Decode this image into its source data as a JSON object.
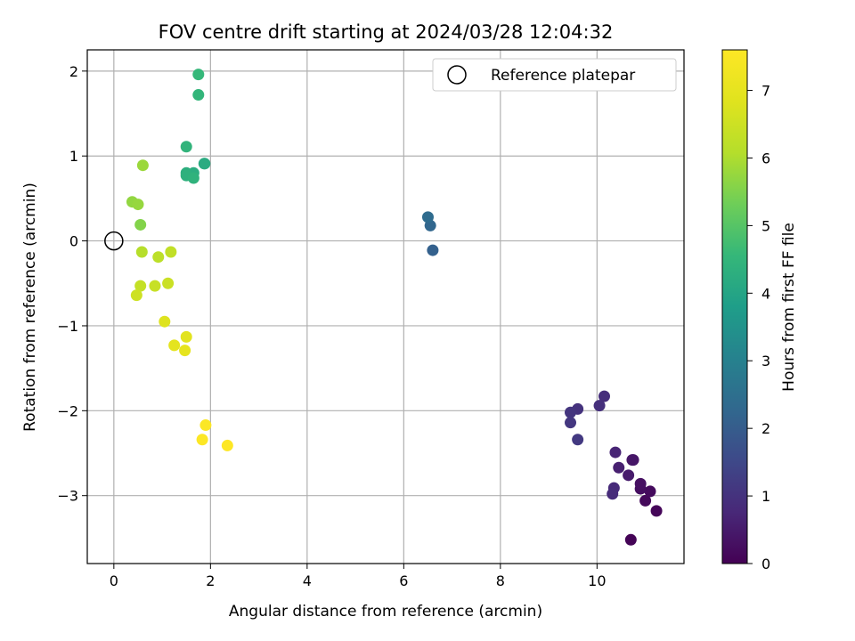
{
  "chart_data": {
    "type": "scatter",
    "title": "FOV centre drift starting at 2024/03/28 12:04:32",
    "xlabel": "Angular distance from reference (arcmin)",
    "ylabel": "Rotation from reference (arcmin)",
    "xlim": [
      -0.55,
      11.8
    ],
    "ylim": [
      -3.8,
      2.25
    ],
    "xticks": [
      0,
      2,
      4,
      6,
      8,
      10
    ],
    "yticks": [
      -3,
      -2,
      -1,
      0,
      1,
      2
    ],
    "xtick_labels": [
      "0",
      "2",
      "4",
      "6",
      "8",
      "10"
    ],
    "ytick_labels": [
      "−3",
      "−2",
      "−1",
      "0",
      "1",
      "2"
    ],
    "grid": true,
    "legend": {
      "position": "top-right",
      "entries": [
        "Reference platepar"
      ]
    },
    "reference_point": {
      "x": 0,
      "y": 0,
      "label": "Reference platepar"
    },
    "colorbar": {
      "label": "Hours from first FF file",
      "colormap": "viridis",
      "range": [
        0,
        7.6
      ],
      "ticks": [
        0,
        1,
        2,
        3,
        4,
        5,
        6,
        7
      ],
      "tick_labels": [
        "0",
        "1",
        "2",
        "3",
        "4",
        "5",
        "6",
        "7"
      ]
    },
    "points": [
      {
        "x": 10.7,
        "y": -3.52,
        "hours": 0.05
      },
      {
        "x": 11.23,
        "y": -3.18,
        "hours": 0.1
      },
      {
        "x": 11.0,
        "y": -3.06,
        "hours": 0.15
      },
      {
        "x": 11.1,
        "y": -2.95,
        "hours": 0.2
      },
      {
        "x": 10.9,
        "y": -2.92,
        "hours": 0.25
      },
      {
        "x": 10.9,
        "y": -2.86,
        "hours": 0.3
      },
      {
        "x": 10.75,
        "y": -2.58,
        "hours": 0.35
      },
      {
        "x": 10.73,
        "y": -2.58,
        "hours": 0.4
      },
      {
        "x": 10.65,
        "y": -2.76,
        "hours": 0.5
      },
      {
        "x": 10.45,
        "y": -2.67,
        "hours": 0.6
      },
      {
        "x": 10.38,
        "y": -2.49,
        "hours": 0.7
      },
      {
        "x": 10.35,
        "y": -2.91,
        "hours": 0.8
      },
      {
        "x": 10.32,
        "y": -2.98,
        "hours": 0.85
      },
      {
        "x": 10.15,
        "y": -1.83,
        "hours": 0.9
      },
      {
        "x": 10.05,
        "y": -1.94,
        "hours": 0.95
      },
      {
        "x": 9.6,
        "y": -1.98,
        "hours": 1.0
      },
      {
        "x": 9.45,
        "y": -2.02,
        "hours": 1.05
      },
      {
        "x": 9.45,
        "y": -2.14,
        "hours": 1.1
      },
      {
        "x": 9.6,
        "y": -2.34,
        "hours": 1.15
      },
      {
        "x": 6.6,
        "y": -0.11,
        "hours": 2.1
      },
      {
        "x": 6.55,
        "y": 0.18,
        "hours": 2.25
      },
      {
        "x": 6.5,
        "y": 0.28,
        "hours": 2.4
      },
      {
        "x": 1.87,
        "y": 0.91,
        "hours": 4.15
      },
      {
        "x": 1.88,
        "y": 0.91,
        "hours": 4.2
      },
      {
        "x": 1.65,
        "y": 0.8,
        "hours": 4.25
      },
      {
        "x": 1.5,
        "y": 0.8,
        "hours": 4.3
      },
      {
        "x": 1.5,
        "y": 0.77,
        "hours": 4.35
      },
      {
        "x": 1.65,
        "y": 0.74,
        "hours": 4.4
      },
      {
        "x": 1.5,
        "y": 1.11,
        "hours": 4.45
      },
      {
        "x": 1.75,
        "y": 1.72,
        "hours": 4.5
      },
      {
        "x": 1.75,
        "y": 1.96,
        "hours": 4.55
      },
      {
        "x": 0.55,
        "y": 0.19,
        "hours": 5.55
      },
      {
        "x": 0.38,
        "y": 0.46,
        "hours": 5.7
      },
      {
        "x": 0.5,
        "y": 0.43,
        "hours": 5.75
      },
      {
        "x": 0.6,
        "y": 0.89,
        "hours": 5.8
      },
      {
        "x": 0.58,
        "y": -0.13,
        "hours": 6.1
      },
      {
        "x": 0.92,
        "y": -0.19,
        "hours": 6.2
      },
      {
        "x": 1.18,
        "y": -0.13,
        "hours": 6.3
      },
      {
        "x": 0.55,
        "y": -0.53,
        "hours": 6.35
      },
      {
        "x": 0.85,
        "y": -0.53,
        "hours": 6.4
      },
      {
        "x": 1.12,
        "y": -0.5,
        "hours": 6.45
      },
      {
        "x": 0.47,
        "y": -0.64,
        "hours": 6.5
      },
      {
        "x": 1.05,
        "y": -0.95,
        "hours": 6.8
      },
      {
        "x": 1.5,
        "y": -1.13,
        "hours": 6.9
      },
      {
        "x": 1.25,
        "y": -1.23,
        "hours": 6.95
      },
      {
        "x": 1.47,
        "y": -1.29,
        "hours": 7.0
      },
      {
        "x": 1.9,
        "y": -2.17,
        "hours": 7.55
      },
      {
        "x": 1.83,
        "y": -2.34,
        "hours": 7.58
      },
      {
        "x": 2.35,
        "y": -2.41,
        "hours": 7.6
      }
    ]
  }
}
